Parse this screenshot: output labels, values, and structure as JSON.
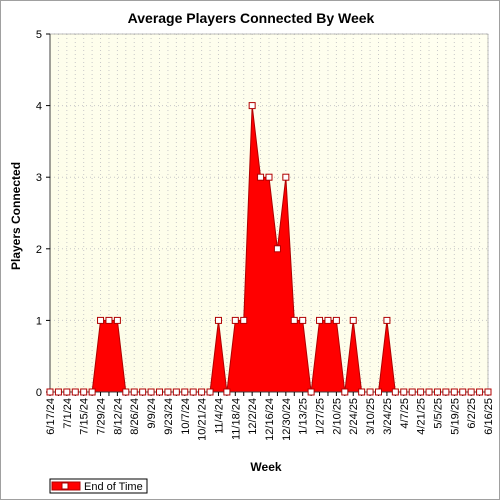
{
  "chart_data": {
    "type": "area",
    "title": "Average Players Connected By Week",
    "xlabel": "Week",
    "ylabel": "Players Connected",
    "ylim": [
      0,
      5
    ],
    "yticks": [
      "0",
      "1",
      "2",
      "3",
      "4",
      "5"
    ],
    "grid": true,
    "legend_position": "bottom-left",
    "x": [
      "6/17/24",
      "6/24/24",
      "7/1/24",
      "7/8/24",
      "7/15/24",
      "7/22/24",
      "7/29/24",
      "8/5/24",
      "8/12/24",
      "8/19/24",
      "8/26/24",
      "9/2/24",
      "9/9/24",
      "9/16/24",
      "9/23/24",
      "9/30/24",
      "10/7/24",
      "10/14/24",
      "10/21/24",
      "10/28/24",
      "11/4/24",
      "11/11/24",
      "11/18/24",
      "11/25/24",
      "12/2/24",
      "12/9/24",
      "12/16/24",
      "12/23/24",
      "12/30/24",
      "1/6/25",
      "1/13/25",
      "1/20/25",
      "1/27/25",
      "2/3/25",
      "2/10/25",
      "2/17/25",
      "2/24/25",
      "3/3/25",
      "3/10/25",
      "3/17/25",
      "3/24/25",
      "3/31/25",
      "4/7/25",
      "4/14/25",
      "4/21/25",
      "4/28/25",
      "5/5/25",
      "5/12/25",
      "5/19/25",
      "5/26/25",
      "6/2/25",
      "6/9/25",
      "6/16/25"
    ],
    "x_tick_labels": [
      "6/17/24",
      "7/1/24",
      "7/15/24",
      "7/29/24",
      "8/12/24",
      "8/26/24",
      "9/9/24",
      "9/23/24",
      "10/7/24",
      "10/21/24",
      "11/4/24",
      "11/18/24",
      "12/2/24",
      "12/16/24",
      "12/30/24",
      "1/13/25",
      "1/27/25",
      "2/10/25",
      "2/24/25",
      "3/10/25",
      "3/24/25",
      "4/7/25",
      "4/21/25",
      "5/5/25",
      "5/19/25",
      "6/2/25",
      "6/16/25"
    ],
    "series": [
      {
        "name": "End of Time",
        "color": "#ff0000",
        "values": [
          0,
          0,
          0,
          0,
          0,
          0,
          1,
          1,
          1,
          0,
          0,
          0,
          0,
          0,
          0,
          0,
          0,
          0,
          0,
          0,
          1,
          0,
          1,
          1,
          4,
          3,
          3,
          2,
          3,
          1,
          1,
          0,
          1,
          1,
          1,
          0,
          1,
          0,
          0,
          0,
          1,
          0,
          0,
          0,
          0,
          0,
          0,
          0,
          0,
          0,
          0,
          0,
          0
        ]
      }
    ]
  },
  "colors": {
    "plot_bg_start": "#fdfde8",
    "plot_bg_end": "#fffff0",
    "grid": "#c8c8c8",
    "series_fill": "#ff0000",
    "series_stroke": "#b00000",
    "marker_fill": "#ffffff"
  }
}
